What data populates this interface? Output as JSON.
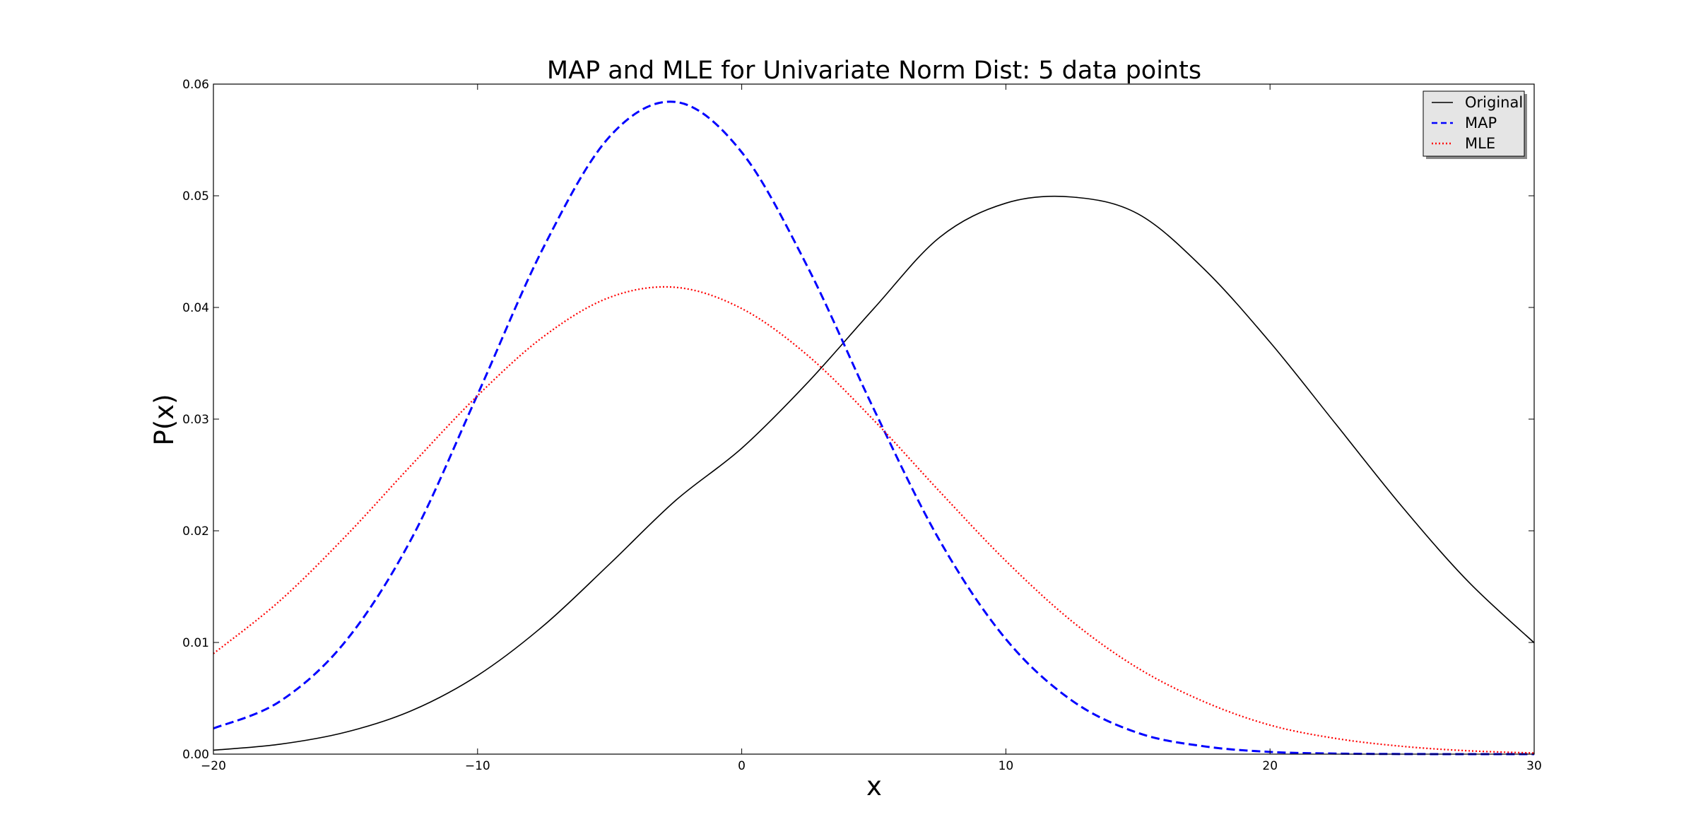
{
  "chart_data": {
    "type": "line",
    "title": "MAP and MLE for Univariate Norm Dist: 5 data points",
    "xlabel": "x",
    "ylabel": "P(x)",
    "xlim": [
      -20,
      30
    ],
    "ylim": [
      0.0,
      0.06
    ],
    "xticks": [
      -20,
      -10,
      0,
      10,
      20,
      30
    ],
    "xtick_labels": [
      "−20",
      "−10",
      "0",
      "10",
      "20",
      "30"
    ],
    "yticks": [
      0.0,
      0.01,
      0.02,
      0.03,
      0.04,
      0.05,
      0.06
    ],
    "ytick_labels": [
      "0.00",
      "0.01",
      "0.02",
      "0.03",
      "0.04",
      "0.05",
      "0.06"
    ],
    "grid": false,
    "legend_position": "top-right",
    "x": [
      -20,
      -17.5,
      -15,
      -12.5,
      -10,
      -7.5,
      -5,
      -2.5,
      0,
      2.5,
      5,
      7.5,
      10,
      12.5,
      15,
      17.5,
      20,
      22.5,
      25,
      27.5,
      30
    ],
    "series": [
      {
        "name": "Original",
        "color": "#000000",
        "style": "solid",
        "values": [
          0.00035,
          0.00088,
          0.00196,
          0.00389,
          0.00704,
          0.01151,
          0.01703,
          0.02272,
          0.02739,
          0.03328,
          0.0399,
          0.04629,
          0.04934,
          0.04989,
          0.04838,
          0.04345,
          0.03689,
          0.02953,
          0.02216,
          0.01546,
          0.00997
        ]
      },
      {
        "name": "MAP",
        "color": "#0000ff",
        "style": "dashed",
        "values": [
          0.0023,
          0.0047,
          0.0101,
          0.0193,
          0.0322,
          0.0454,
          0.0553,
          0.0584,
          0.0539,
          0.0436,
          0.0309,
          0.0191,
          0.0103,
          0.0048,
          0.0019,
          0.0007,
          0.0002,
          5e-05,
          1e-05,
          0.0,
          0.0
        ]
      },
      {
        "name": "MLE",
        "color": "#ff0000",
        "style": "dotted",
        "values": [
          0.009,
          0.0137,
          0.0195,
          0.0259,
          0.0321,
          0.0374,
          0.0409,
          0.0418,
          0.0399,
          0.0357,
          0.0299,
          0.0235,
          0.0173,
          0.0119,
          0.0077,
          0.0047,
          0.0026,
          0.0014,
          0.0007,
          0.0003,
          0.0001
        ]
      }
    ]
  }
}
